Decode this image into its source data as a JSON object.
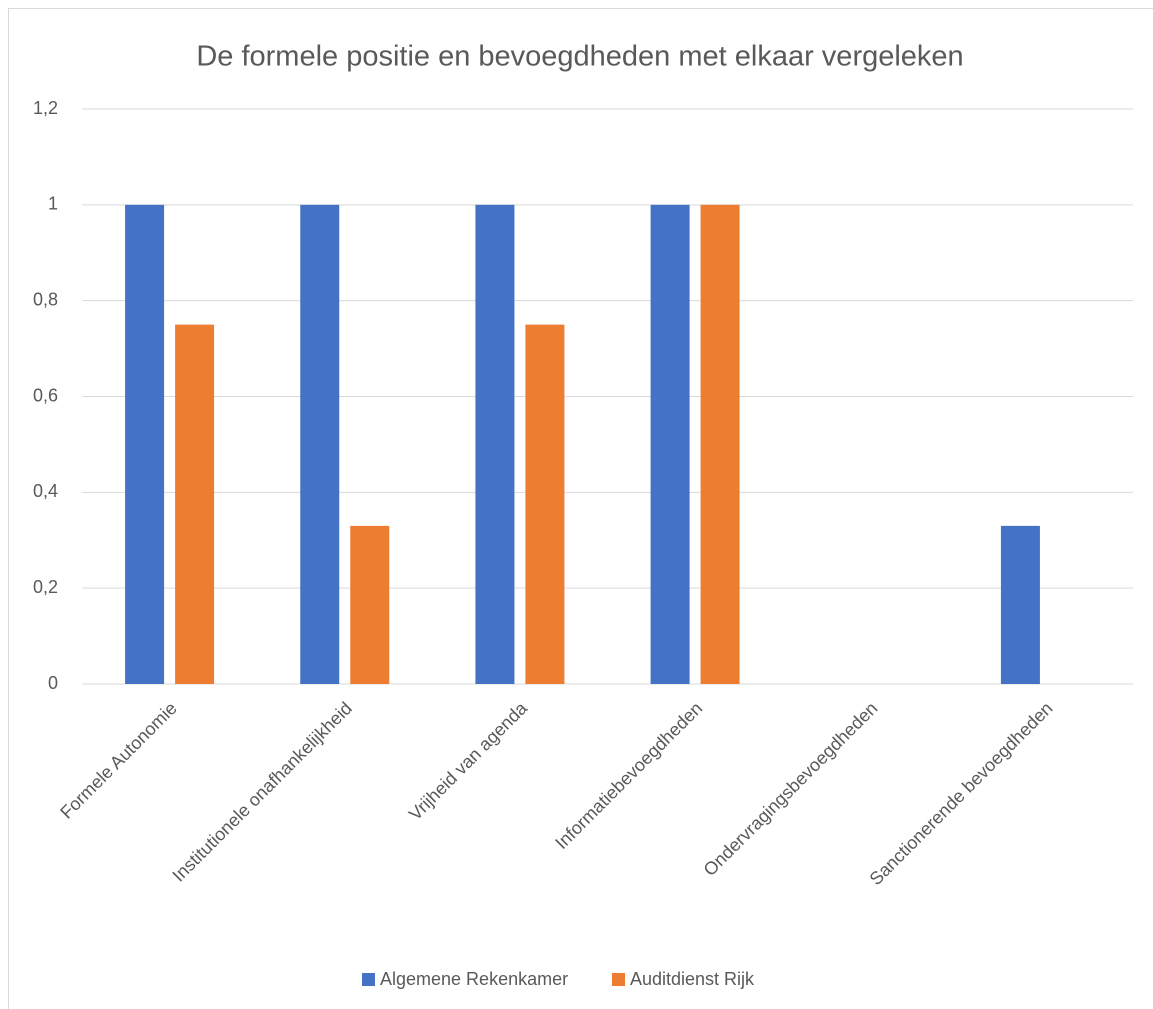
{
  "chart_data": {
    "type": "bar",
    "title": "De formele positie en bevoegdheden met elkaar vergeleken",
    "categories": [
      "Formele Autonomie",
      "Institutionele onafhankelijkheid",
      "Vrijheid van agenda",
      "Informatiebevoegdheden",
      "Ondervragingsbevoegdheden",
      "Sanctionerende bevoegdheden"
    ],
    "series": [
      {
        "name": "Algemene Rekenkamer",
        "color": "#4472c4",
        "values": [
          1,
          1,
          1,
          1,
          0,
          0.33
        ]
      },
      {
        "name": "Auditdienst Rijk",
        "color": "#ed7d31",
        "values": [
          0.75,
          0.33,
          0.75,
          1,
          0,
          0
        ]
      }
    ],
    "ylim": [
      0,
      1.2
    ],
    "yticks": [
      0,
      {
        "value": 0.2,
        "label": "0,2"
      },
      {
        "value": 0.4,
        "label": "0,4"
      },
      {
        "value": 0.6,
        "label": "0,6"
      },
      {
        "value": 0.8,
        "label": "0,8"
      },
      1,
      {
        "value": 1.2,
        "label": "1,2"
      }
    ],
    "grid": true,
    "legend": "bottom"
  }
}
